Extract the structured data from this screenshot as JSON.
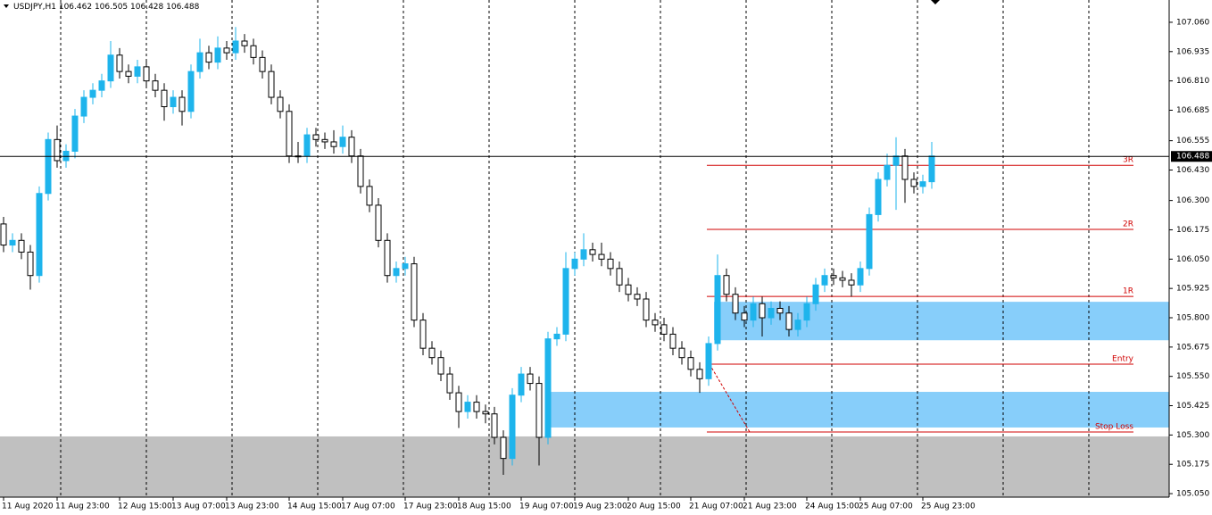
{
  "chart_data": {
    "type": "candlestick",
    "header": {
      "symbol": "USDJPY,H1",
      "open": 106.462,
      "high": 106.505,
      "low": 106.428,
      "close": 106.488
    },
    "current_price": 106.488,
    "up_color": "#1eb4ec",
    "down_color": "#000000",
    "ylim": [
      105.035,
      107.155
    ],
    "yticks": [
      {
        "value": 107.06,
        "label": "107.060"
      },
      106.935,
      {
        "value": 106.81,
        "label": "106.810"
      },
      106.685,
      106.555,
      {
        "value": 106.43,
        "label": "106.430"
      },
      {
        "value": 106.3,
        "label": "106.300"
      },
      106.175,
      {
        "value": 106.05,
        "label": "106.050"
      },
      105.925,
      {
        "value": 105.8,
        "label": "105.800"
      },
      105.675,
      {
        "value": 105.55,
        "label": "105.550"
      },
      105.425,
      {
        "value": 105.3,
        "label": "105.300"
      },
      105.175,
      {
        "value": 105.05,
        "label": "105.050"
      }
    ],
    "levels": [
      {
        "label": "3R",
        "value": 106.45
      },
      {
        "label": "2R",
        "value": 106.177
      },
      {
        "label": "1R",
        "value": 105.891
      },
      {
        "label": "Entry",
        "value": 105.602
      },
      {
        "label": "Stop Loss",
        "value": 105.313
      }
    ],
    "level_color": "#d00000",
    "zones": [
      {
        "top": 105.294,
        "bottom": 105.035,
        "color": "#c0c0c0"
      },
      {
        "top": 105.868,
        "bottom": 105.704,
        "color": "#87cefa"
      },
      {
        "top": 105.484,
        "bottom": 105.332,
        "color": "#87cefa"
      }
    ],
    "categories": [
      "11 Aug 2020",
      null,
      null,
      null,
      null,
      null,
      "11 Aug 23:00",
      null,
      null,
      null,
      null,
      null,
      null,
      "12 Aug 15:00",
      null,
      null,
      null,
      null,
      null,
      "13 Aug 07:00",
      null,
      null,
      null,
      null,
      null,
      "13 Aug 23:00",
      null,
      null,
      null,
      null,
      null,
      null,
      "14 Aug 15:00",
      null,
      null,
      null,
      null,
      null,
      "17 Aug 07:00",
      null,
      null,
      null,
      null,
      null,
      null,
      "17 Aug 23:00",
      null,
      null,
      null,
      null,
      null,
      "18 Aug 15:00",
      null,
      null,
      null,
      null,
      null,
      null,
      "19 Aug 07:00",
      null,
      null,
      null,
      null,
      null,
      "19 Aug 23:00",
      null,
      null,
      null,
      null,
      null,
      "20 Aug 15:00",
      null,
      null,
      null,
      null,
      null,
      null,
      "21 Aug 07:00",
      null,
      null,
      null,
      null,
      null,
      "21 Aug 23:00",
      null,
      null,
      null,
      null,
      null,
      null,
      "24 Aug 15:00",
      null,
      null,
      null,
      null,
      null,
      "25 Aug 07:00",
      null,
      null,
      null,
      null,
      null,
      null,
      "25 Aug 23:00",
      null
    ],
    "candles": [
      [
        106.2,
        106.23,
        106.08,
        106.11
      ],
      [
        106.11,
        106.16,
        106.08,
        106.13
      ],
      [
        106.13,
        106.16,
        106.05,
        106.08
      ],
      [
        106.08,
        106.11,
        105.92,
        105.98
      ],
      [
        105.98,
        106.36,
        105.95,
        106.33
      ],
      [
        106.33,
        106.59,
        106.3,
        106.56
      ],
      [
        106.56,
        106.62,
        106.44,
        106.47
      ],
      [
        106.47,
        106.54,
        106.44,
        106.51
      ],
      [
        106.51,
        106.69,
        106.48,
        106.66
      ],
      [
        106.66,
        106.77,
        106.63,
        106.74
      ],
      [
        106.74,
        106.8,
        106.71,
        106.77
      ],
      [
        106.77,
        106.84,
        106.74,
        106.81
      ],
      [
        106.81,
        106.98,
        106.78,
        106.92
      ],
      [
        106.92,
        106.95,
        106.82,
        106.85
      ],
      [
        106.85,
        106.88,
        106.8,
        106.83
      ],
      [
        106.83,
        106.9,
        106.8,
        106.87
      ],
      [
        106.87,
        106.9,
        106.78,
        106.81
      ],
      [
        106.81,
        106.84,
        106.74,
        106.77
      ],
      [
        106.77,
        106.8,
        106.64,
        106.7
      ],
      [
        106.7,
        106.77,
        106.67,
        106.74
      ],
      [
        106.74,
        106.77,
        106.62,
        106.68
      ],
      [
        106.68,
        106.88,
        106.65,
        106.85
      ],
      [
        106.85,
        106.99,
        106.82,
        106.93
      ],
      [
        106.93,
        106.96,
        106.86,
        106.89
      ],
      [
        106.89,
        107.0,
        106.86,
        106.95
      ],
      [
        106.95,
        106.98,
        106.9,
        106.93
      ],
      [
        106.93,
        107.04,
        106.9,
        106.98
      ],
      [
        106.98,
        107.01,
        106.93,
        106.96
      ],
      [
        106.96,
        106.99,
        106.88,
        106.91
      ],
      [
        106.91,
        106.94,
        106.82,
        106.85
      ],
      [
        106.85,
        106.88,
        106.71,
        106.74
      ],
      [
        106.74,
        106.77,
        106.65,
        106.68
      ],
      [
        106.68,
        106.71,
        106.46,
        106.49
      ],
      [
        106.49,
        106.55,
        106.46,
        106.49
      ],
      [
        106.49,
        106.61,
        106.46,
        106.58
      ],
      [
        106.58,
        106.61,
        106.53,
        106.56
      ],
      [
        106.56,
        106.59,
        106.52,
        106.55
      ],
      [
        106.55,
        106.6,
        106.5,
        106.53
      ],
      [
        106.53,
        106.62,
        106.5,
        106.57
      ],
      [
        106.57,
        106.6,
        106.46,
        106.49
      ],
      [
        106.49,
        106.52,
        106.33,
        106.36
      ],
      [
        106.36,
        106.39,
        106.25,
        106.28
      ],
      [
        106.28,
        106.31,
        106.1,
        106.13
      ],
      [
        106.13,
        106.16,
        105.95,
        105.98
      ],
      [
        105.98,
        106.04,
        105.95,
        106.01
      ],
      [
        106.01,
        106.06,
        105.98,
        106.03
      ],
      [
        106.03,
        106.06,
        105.76,
        105.79
      ],
      [
        105.79,
        105.82,
        105.64,
        105.67
      ],
      [
        105.67,
        105.7,
        105.6,
        105.63
      ],
      [
        105.63,
        105.66,
        105.53,
        105.56
      ],
      [
        105.56,
        105.59,
        105.45,
        105.48
      ],
      [
        105.48,
        105.51,
        105.33,
        105.4
      ],
      [
        105.4,
        105.47,
        105.37,
        105.44
      ],
      [
        105.44,
        105.47,
        105.37,
        105.4
      ],
      [
        105.4,
        105.43,
        105.35,
        105.39
      ],
      [
        105.39,
        105.42,
        105.26,
        105.29
      ],
      [
        105.29,
        105.32,
        105.13,
        105.2
      ],
      [
        105.2,
        105.5,
        105.17,
        105.47
      ],
      [
        105.47,
        105.59,
        105.44,
        105.56
      ],
      [
        105.56,
        105.59,
        105.49,
        105.52
      ],
      [
        105.52,
        105.55,
        105.17,
        105.29
      ],
      [
        105.29,
        105.74,
        105.26,
        105.71
      ],
      [
        105.71,
        105.76,
        105.68,
        105.73
      ],
      [
        105.73,
        106.08,
        105.7,
        106.01
      ],
      [
        106.01,
        106.08,
        105.98,
        106.05
      ],
      [
        106.05,
        106.16,
        106.02,
        106.09
      ],
      [
        106.09,
        106.12,
        106.04,
        106.07
      ],
      [
        106.07,
        106.12,
        106.02,
        106.05
      ],
      [
        106.05,
        106.08,
        105.98,
        106.01
      ],
      [
        106.01,
        106.04,
        105.91,
        105.94
      ],
      [
        105.94,
        105.97,
        105.87,
        105.9
      ],
      [
        105.9,
        105.93,
        105.85,
        105.88
      ],
      [
        105.88,
        105.91,
        105.76,
        105.79
      ],
      [
        105.79,
        105.82,
        105.74,
        105.77
      ],
      [
        105.77,
        105.8,
        105.7,
        105.73
      ],
      [
        105.73,
        105.76,
        105.64,
        105.67
      ],
      [
        105.67,
        105.7,
        105.6,
        105.63
      ],
      [
        105.63,
        105.66,
        105.55,
        105.58
      ],
      [
        105.58,
        105.61,
        105.48,
        105.54
      ],
      [
        105.54,
        105.72,
        105.51,
        105.69
      ],
      [
        105.69,
        106.07,
        105.66,
        105.98
      ],
      [
        105.98,
        106.01,
        105.87,
        105.9
      ],
      [
        105.9,
        105.93,
        105.79,
        105.82
      ],
      [
        105.82,
        105.85,
        105.76,
        105.79
      ],
      [
        105.79,
        105.89,
        105.76,
        105.86
      ],
      [
        105.86,
        105.89,
        105.72,
        105.8
      ],
      [
        105.8,
        105.87,
        105.77,
        105.84
      ],
      [
        105.84,
        105.87,
        105.79,
        105.82
      ],
      [
        105.82,
        105.85,
        105.72,
        105.75
      ],
      [
        105.75,
        105.82,
        105.72,
        105.79
      ],
      [
        105.79,
        105.89,
        105.76,
        105.86
      ],
      [
        105.86,
        105.97,
        105.83,
        105.94
      ],
      [
        105.94,
        106.01,
        105.91,
        105.98
      ],
      [
        105.98,
        106.01,
        105.94,
        105.97
      ],
      [
        105.97,
        106.0,
        105.93,
        105.96
      ],
      [
        105.96,
        105.99,
        105.89,
        105.94
      ],
      [
        105.94,
        106.04,
        105.91,
        106.01
      ],
      [
        106.01,
        106.27,
        105.98,
        106.24
      ],
      [
        106.24,
        106.42,
        106.21,
        106.39
      ],
      [
        106.39,
        106.5,
        106.36,
        106.45
      ],
      [
        106.45,
        106.57,
        106.26,
        106.49
      ],
      [
        106.49,
        106.52,
        106.29,
        106.39
      ],
      [
        106.39,
        106.42,
        106.33,
        106.36
      ],
      [
        106.36,
        106.41,
        106.33,
        106.38
      ],
      [
        106.38,
        106.55,
        106.35,
        106.49
      ]
    ]
  }
}
